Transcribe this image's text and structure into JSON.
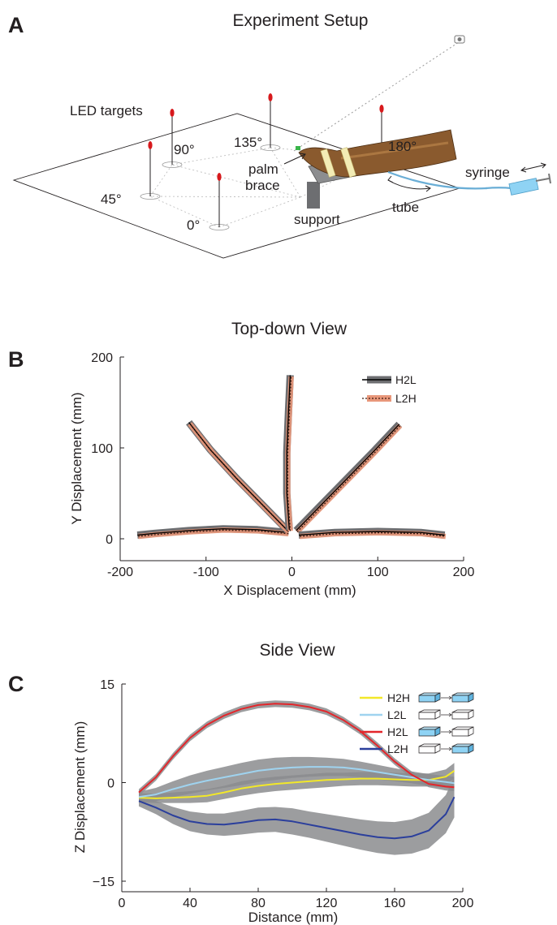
{
  "panels": {
    "a": {
      "label": "A",
      "title": "Experiment Setup",
      "annotations": {
        "led_targets": "LED targets",
        "a90": "90°",
        "a135": "135°",
        "a180": "180°",
        "a45": "45°",
        "a0": "0°",
        "palm": "palm",
        "brace": "brace",
        "support": "support",
        "syringe": "syringe",
        "tube": "tube"
      }
    },
    "b": {
      "label": "B"
    },
    "c": {
      "label": "C"
    }
  },
  "chart_data": [
    {
      "type": "line",
      "title": "Top-down View",
      "xlabel": "X Displacement (mm)",
      "ylabel": "Y Displacement (mm)",
      "xlim": [
        -200,
        200
      ],
      "ylim": [
        -10,
        200
      ],
      "xticks": [
        "-200",
        "-100",
        "0",
        "100",
        "200"
      ],
      "yticks": [
        "0",
        "100",
        "200"
      ],
      "legend_position": "top-right",
      "series": [
        {
          "name": "H2L",
          "style": "solid",
          "color": "#000000",
          "band_color": "#6d6e71"
        },
        {
          "name": "L2H",
          "style": "dotted",
          "color": "#3a1a10",
          "band_color": "#e8977a"
        }
      ],
      "trajectories": [
        {
          "target": "0°",
          "x": [
            -5,
            -40,
            -80,
            -120,
            -160,
            -180
          ],
          "y": [
            7,
            10,
            11,
            9,
            6,
            4
          ]
        },
        {
          "target": "45°",
          "x": [
            -5,
            -35,
            -65,
            -95,
            -120
          ],
          "y": [
            9,
            38,
            67,
            98,
            128
          ]
        },
        {
          "target": "90°",
          "x": [
            -3,
            -6,
            -6,
            -4,
            -2
          ],
          "y": [
            10,
            50,
            95,
            140,
            180
          ]
        },
        {
          "target": "135°",
          "x": [
            5,
            35,
            65,
            95,
            125
          ],
          "y": [
            9,
            38,
            67,
            96,
            126
          ]
        },
        {
          "target": "180°",
          "x": [
            8,
            50,
            100,
            150,
            178
          ],
          "y": [
            4,
            7,
            8,
            7,
            4
          ]
        }
      ]
    },
    {
      "type": "line",
      "title": "Side View",
      "xlabel": "Distance (mm)",
      "ylabel": "Z Displacement (mm)",
      "xlim": [
        0,
        200
      ],
      "ylim": [
        -15,
        15
      ],
      "xticks": [
        "0",
        "40",
        "80",
        "120",
        "160",
        "200"
      ],
      "yticks": [
        "15",
        "0",
        "−15"
      ],
      "legend_position": "top-right",
      "x": [
        10,
        20,
        30,
        40,
        50,
        60,
        70,
        80,
        90,
        100,
        110,
        120,
        130,
        140,
        150,
        160,
        170,
        180,
        190,
        195
      ],
      "series": [
        {
          "name": "H2H",
          "color": "#f2e829",
          "values": [
            -2.3,
            -2.4,
            -2.3,
            -2.2,
            -2.0,
            -1.5,
            -0.9,
            -0.5,
            -0.2,
            0.0,
            0.2,
            0.4,
            0.5,
            0.6,
            0.6,
            0.5,
            0.4,
            0.4,
            0.9,
            1.8
          ],
          "band": [
            0.7,
            0.7,
            0.8,
            0.9,
            1.0,
            1.0,
            1.1,
            1.1,
            1.1,
            1.1,
            1.1,
            1.1,
            1.0,
            1.0,
            1.0,
            1.0,
            1.0,
            1.0,
            1.1,
            1.2
          ],
          "icon_from": "filled",
          "icon_to": "filled"
        },
        {
          "name": "L2L",
          "color": "#9fd3ef",
          "values": [
            -2.2,
            -1.8,
            -1.0,
            -0.3,
            0.3,
            0.8,
            1.3,
            1.8,
            2.1,
            2.3,
            2.4,
            2.4,
            2.3,
            2.0,
            1.6,
            1.2,
            0.8,
            0.4,
            0.1,
            -0.1
          ],
          "band": [
            0.8,
            1.0,
            1.2,
            1.4,
            1.5,
            1.6,
            1.7,
            1.7,
            1.7,
            1.6,
            1.5,
            1.4,
            1.3,
            1.2,
            1.1,
            1.0,
            0.9,
            0.9,
            0.9,
            1.0
          ],
          "icon_from": "empty",
          "icon_to": "empty"
        },
        {
          "name": "H2L",
          "color": "#e3262b",
          "values": [
            -1.5,
            0.8,
            4.0,
            6.8,
            8.8,
            10.2,
            11.2,
            11.8,
            12.0,
            11.9,
            11.5,
            10.8,
            9.5,
            7.8,
            5.6,
            3.2,
            1.2,
            -0.2,
            -0.6,
            -0.7
          ],
          "band": [
            0.5,
            0.5,
            0.5,
            0.5,
            0.5,
            0.5,
            0.5,
            0.5,
            0.5,
            0.5,
            0.5,
            0.5,
            0.5,
            0.5,
            0.5,
            0.5,
            0.5,
            0.5,
            0.6,
            0.6
          ],
          "icon_from": "filled",
          "icon_to": "empty"
        },
        {
          "name": "L2H",
          "color": "#2b3f9c",
          "values": [
            -2.8,
            -3.8,
            -5.0,
            -5.9,
            -6.3,
            -6.4,
            -6.1,
            -5.7,
            -5.6,
            -5.9,
            -6.4,
            -6.9,
            -7.4,
            -7.9,
            -8.3,
            -8.5,
            -8.2,
            -7.3,
            -4.8,
            -2.2
          ],
          "band": [
            0.8,
            1.0,
            1.3,
            1.5,
            1.6,
            1.7,
            1.8,
            1.9,
            1.9,
            2.0,
            2.0,
            2.1,
            2.2,
            2.3,
            2.4,
            2.5,
            2.6,
            2.7,
            2.9,
            3.1
          ],
          "icon_from": "empty",
          "icon_to": "filled"
        }
      ]
    }
  ]
}
